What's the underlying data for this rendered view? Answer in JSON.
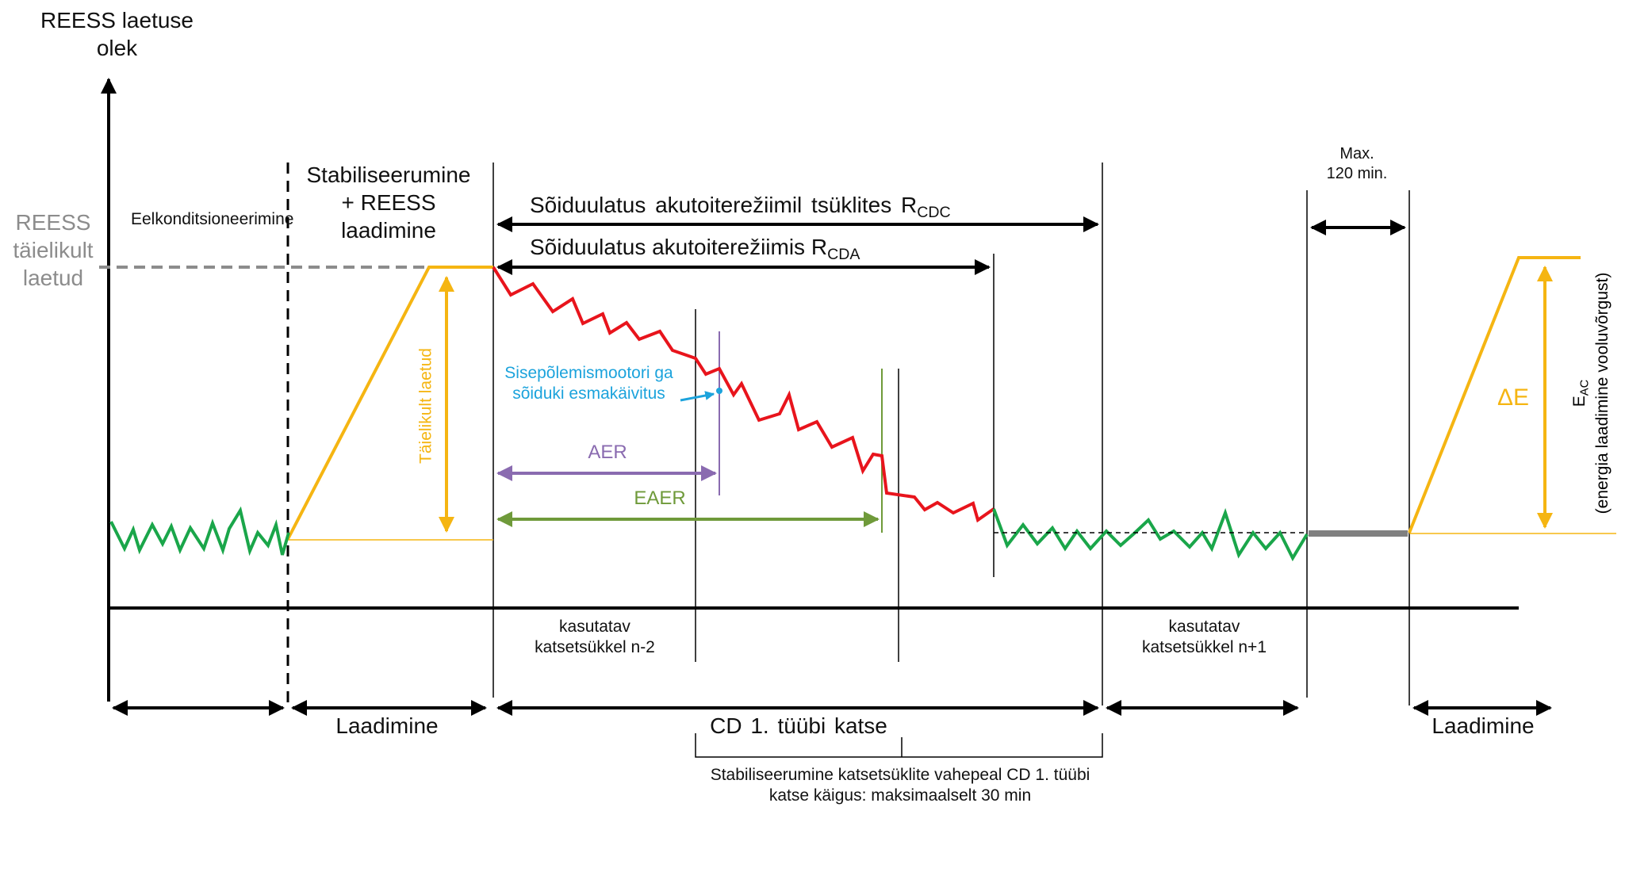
{
  "y_axis_title": "REESS laetuse olek",
  "full_charge_label": "REESS täielikult laetud",
  "phase_preconditioning": "Eelkonditsioneerimine",
  "phase_stabilization": "Stabiliseerumine + REESS laadimine",
  "rcdc": {
    "text": "Sõiduulatus akutoiterežiimil tsüklites R",
    "sub": "CDC"
  },
  "rcda": {
    "text": "Sõiduulatus akutoiterežiimis R",
    "sub": "CDA"
  },
  "fully_charged_vertical": "Täielikult laetud",
  "engine_start": "Sisepõlemismootori ga sõiduki esmakäivitus",
  "aer": "AER",
  "eaer": "EAER",
  "max_time": "Max. 120 min.",
  "delta_e": "ΔE",
  "eac": {
    "text": "E",
    "sub": "AC",
    "line2": "(energia laadimine vooluvõrgust)"
  },
  "cycle_n2": "kasutatav katsetsükkel n-2",
  "cycle_n1": "kasutatav katsetsükkel n+1",
  "charging_left": "Laadimine",
  "charging_right": "Laadimine",
  "cd_test": "CD 1. tüübi katse",
  "stabilization_note": "Stabiliseerumine katsetsüklite  vahepeal CD 1. tüübi katse käigus: maksimaalselt 30 min",
  "colors": {
    "soc_charge_sustaining": "#1aa64a",
    "soc_charge_depleting": "#e8141c",
    "charging_ramp": "#f5b512",
    "full_label_gray": "#8c8c8c",
    "engine_start_blue": "#1ca3dc",
    "aer_purple": "#8a6bb0",
    "eaer_olive": "#6f9a3a",
    "soak_gray": "#808080"
  }
}
